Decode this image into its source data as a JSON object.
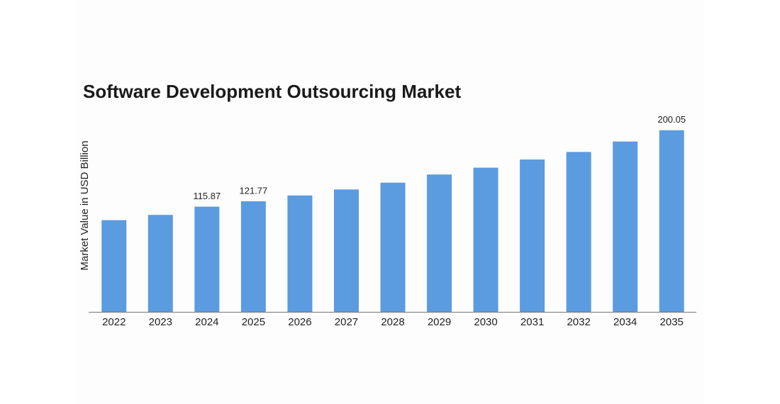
{
  "chart_data": {
    "type": "bar",
    "title": "Software Development Outsourcing Market",
    "y_label": "Market Value in USD Billion",
    "categories": [
      "2022",
      "2023",
      "2024",
      "2025",
      "2026",
      "2027",
      "2028",
      "2029",
      "2030",
      "2031",
      "2032",
      "2034",
      "2035"
    ],
    "values": [
      101.0,
      106.8,
      115.87,
      121.77,
      128.2,
      134.8,
      142.3,
      151.3,
      158.8,
      167.8,
      176.1,
      187.6,
      200.05
    ],
    "value_labels": [
      null,
      null,
      "115.87",
      "121.77",
      null,
      null,
      null,
      null,
      null,
      null,
      null,
      null,
      "200.05"
    ],
    "color": "#5b9be0",
    "ylim": [
      0,
      210
    ],
    "grid": false
  }
}
